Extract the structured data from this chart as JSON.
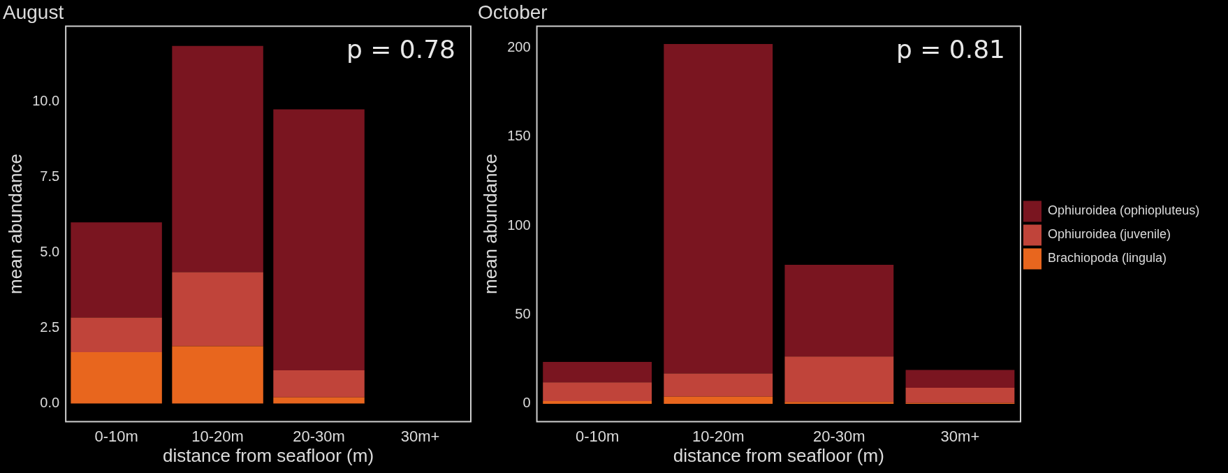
{
  "chart_data": [
    {
      "type": "bar",
      "title": "August",
      "xlabel": "distance from seafloor (m)",
      "ylabel": "mean abundance",
      "categories": [
        "0-10m",
        "10-20m",
        "20-30m",
        "30m+"
      ],
      "stacked": true,
      "ylim": [
        -0.6,
        12.5
      ],
      "yticks": [
        {
          "value": 0,
          "label": "0.0"
        },
        {
          "value": 2.5,
          "label": "2.5"
        },
        {
          "value": 5,
          "label": "5.0"
        },
        {
          "value": 7.5,
          "label": "7.5"
        },
        {
          "value": 10,
          "label": "10.0"
        }
      ],
      "grid": false,
      "legend": false,
      "annotations": [
        "p = 0.78"
      ],
      "series": [
        {
          "color": "#e8661e",
          "values": [
            1.7,
            1.9,
            0.2,
            null
          ]
        },
        {
          "color": "#c0443a",
          "values": [
            1.15,
            2.45,
            0.9,
            null
          ]
        },
        {
          "color": "#7a1520",
          "values": [
            3.15,
            7.5,
            8.65,
            null
          ]
        }
      ]
    },
    {
      "type": "bar",
      "title": "October",
      "xlabel": "distance from seafloor (m)",
      "ylabel": "mean abundance",
      "categories": [
        "0-10m",
        "10-20m",
        "20-30m",
        "30m+"
      ],
      "stacked": true,
      "ylim": [
        -10,
        212
      ],
      "yticks": [
        0,
        50,
        100,
        150,
        200
      ],
      "grid": false,
      "legend": "right",
      "annotations": [
        "p = 0.81"
      ],
      "series": [
        {
          "name": "Brachiopoda (lingula)",
          "color": "#e8661e",
          "values": [
            1.5,
            4,
            1,
            0.5
          ]
        },
        {
          "name": "Ophiuroidea (juvenile)",
          "color": "#c0443a",
          "values": [
            10.5,
            13,
            25.5,
            8.5
          ]
        },
        {
          "name": "Ophiuroidea (ophiopluteus)",
          "color": "#7a1520",
          "values": [
            11.5,
            185,
            51.5,
            10
          ]
        }
      ]
    }
  ]
}
